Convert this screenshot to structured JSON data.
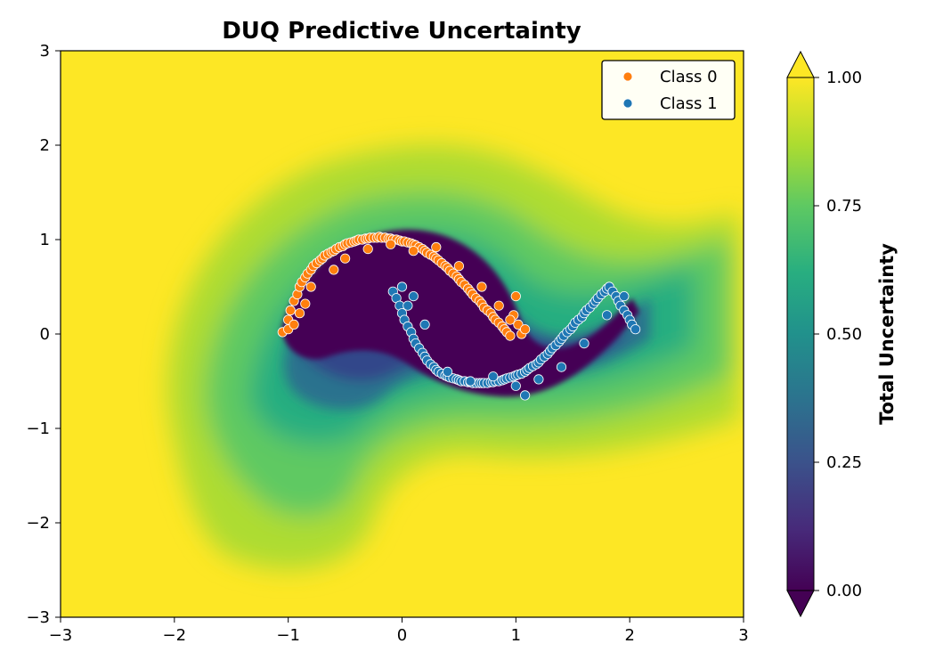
{
  "chart_data": {
    "type": "scatter",
    "title": "DUQ Predictive Uncertainty",
    "xlim": [
      -3,
      3
    ],
    "ylim": [
      -3,
      3
    ],
    "xticks": [
      -3,
      -2,
      -1,
      0,
      1,
      2,
      3
    ],
    "yticks": [
      -3,
      -2,
      -1,
      0,
      1,
      2,
      3
    ],
    "xtick_labels": [
      "−3",
      "−2",
      "−1",
      "0",
      "1",
      "2",
      "3"
    ],
    "ytick_labels": [
      "−3",
      "−2",
      "−1",
      "0",
      "1",
      "2",
      "3"
    ],
    "grid": false,
    "legend_position": "top-right",
    "background": {
      "type": "filled-contour",
      "quantity": "Total Uncertainty",
      "colormap": "viridis",
      "min_color": "#440154",
      "max_color": "#fde725"
    },
    "colorbar": {
      "label": "Total Uncertainty",
      "min": 0,
      "max": 1,
      "ticks": [
        0,
        0.25,
        0.5,
        0.75,
        1
      ],
      "tick_labels": [
        "0.00",
        "0.25",
        "0.50",
        "0.75",
        "1.00"
      ],
      "extend": "both"
    },
    "series": [
      {
        "name": "Class 0",
        "color": "#ff7f0e",
        "shape": "upper-moon",
        "x": [
          -1.05,
          -1.0,
          -0.98,
          -0.95,
          -0.92,
          -0.9,
          -0.88,
          -0.85,
          -0.83,
          -0.8,
          -0.78,
          -0.75,
          -0.72,
          -0.7,
          -0.68,
          -0.65,
          -0.62,
          -0.6,
          -0.58,
          -0.55,
          -0.52,
          -0.5,
          -0.48,
          -0.45,
          -0.42,
          -0.4,
          -0.38,
          -0.35,
          -0.32,
          -0.3,
          -0.28,
          -0.25,
          -0.22,
          -0.2,
          -0.18,
          -0.15,
          -0.12,
          -0.1,
          -0.08,
          -0.05,
          -0.02,
          0.0,
          0.02,
          0.05,
          0.08,
          0.1,
          0.12,
          0.15,
          0.18,
          0.2,
          0.22,
          0.25,
          0.28,
          0.3,
          0.32,
          0.35,
          0.38,
          0.4,
          0.42,
          0.45,
          0.48,
          0.5,
          0.52,
          0.55,
          0.58,
          0.6,
          0.62,
          0.65,
          0.68,
          0.7,
          0.72,
          0.75,
          0.78,
          0.8,
          0.82,
          0.85,
          0.88,
          0.9,
          0.92,
          0.95,
          0.98,
          1.0,
          1.02,
          1.05,
          -1.0,
          -0.95,
          -0.9,
          -0.85,
          -0.8,
          -0.6,
          -0.5,
          -0.3,
          -0.1,
          0.1,
          0.3,
          0.5,
          0.7,
          0.85,
          0.95,
          1.08
        ],
        "y": [
          0.02,
          0.15,
          0.25,
          0.35,
          0.42,
          0.5,
          0.55,
          0.6,
          0.64,
          0.68,
          0.72,
          0.75,
          0.78,
          0.8,
          0.83,
          0.85,
          0.87,
          0.88,
          0.9,
          0.92,
          0.93,
          0.95,
          0.96,
          0.97,
          0.98,
          0.99,
          1.0,
          1.0,
          1.01,
          1.01,
          1.02,
          1.02,
          1.02,
          1.03,
          1.02,
          1.02,
          1.01,
          1.01,
          1.0,
          1.0,
          0.99,
          0.98,
          0.98,
          0.97,
          0.96,
          0.95,
          0.94,
          0.92,
          0.9,
          0.88,
          0.86,
          0.84,
          0.82,
          0.8,
          0.78,
          0.75,
          0.72,
          0.7,
          0.67,
          0.64,
          0.61,
          0.58,
          0.55,
          0.52,
          0.48,
          0.45,
          0.42,
          0.38,
          0.35,
          0.32,
          0.28,
          0.25,
          0.22,
          0.18,
          0.15,
          0.12,
          0.08,
          0.05,
          0.02,
          -0.02,
          0.2,
          0.4,
          0.1,
          0.0,
          0.05,
          0.1,
          0.22,
          0.32,
          0.5,
          0.68,
          0.8,
          0.9,
          0.95,
          0.88,
          0.92,
          0.72,
          0.5,
          0.3,
          0.15,
          0.05
        ],
        "point_count": 100
      },
      {
        "name": "Class 1",
        "color": "#1f77b4",
        "shape": "lower-moon",
        "x": [
          -0.08,
          -0.05,
          -0.02,
          0.0,
          0.02,
          0.05,
          0.08,
          0.1,
          0.12,
          0.15,
          0.18,
          0.2,
          0.22,
          0.25,
          0.28,
          0.3,
          0.32,
          0.35,
          0.38,
          0.4,
          0.42,
          0.45,
          0.48,
          0.5,
          0.52,
          0.55,
          0.58,
          0.6,
          0.62,
          0.65,
          0.68,
          0.7,
          0.72,
          0.75,
          0.78,
          0.8,
          0.82,
          0.85,
          0.88,
          0.9,
          0.92,
          0.95,
          0.98,
          1.0,
          1.02,
          1.05,
          1.08,
          1.1,
          1.12,
          1.15,
          1.18,
          1.2,
          1.22,
          1.25,
          1.28,
          1.3,
          1.32,
          1.35,
          1.38,
          1.4,
          1.42,
          1.45,
          1.48,
          1.5,
          1.52,
          1.55,
          1.58,
          1.6,
          1.62,
          1.65,
          1.68,
          1.7,
          1.72,
          1.75,
          1.78,
          1.8,
          1.82,
          1.85,
          1.88,
          1.9,
          1.92,
          1.95,
          1.98,
          2.0,
          2.02,
          2.05,
          0.0,
          0.1,
          0.2,
          0.4,
          0.6,
          0.8,
          1.0,
          1.2,
          1.4,
          1.6,
          1.8,
          1.95,
          0.05,
          1.08
        ],
        "y": [
          0.45,
          0.38,
          0.3,
          0.22,
          0.15,
          0.08,
          0.02,
          -0.05,
          -0.1,
          -0.15,
          -0.2,
          -0.24,
          -0.28,
          -0.32,
          -0.35,
          -0.38,
          -0.4,
          -0.42,
          -0.44,
          -0.45,
          -0.46,
          -0.47,
          -0.48,
          -0.49,
          -0.5,
          -0.5,
          -0.51,
          -0.51,
          -0.52,
          -0.52,
          -0.52,
          -0.52,
          -0.52,
          -0.52,
          -0.51,
          -0.51,
          -0.5,
          -0.5,
          -0.49,
          -0.48,
          -0.47,
          -0.46,
          -0.45,
          -0.44,
          -0.43,
          -0.42,
          -0.4,
          -0.38,
          -0.36,
          -0.34,
          -0.32,
          -0.3,
          -0.27,
          -0.24,
          -0.21,
          -0.18,
          -0.15,
          -0.12,
          -0.08,
          -0.05,
          -0.02,
          0.02,
          0.05,
          0.08,
          0.12,
          0.15,
          0.18,
          0.22,
          0.25,
          0.28,
          0.32,
          0.35,
          0.38,
          0.42,
          0.45,
          0.48,
          0.5,
          0.45,
          0.4,
          0.35,
          0.3,
          0.25,
          0.2,
          0.15,
          0.1,
          0.05,
          0.5,
          0.4,
          0.1,
          -0.4,
          -0.5,
          -0.45,
          -0.55,
          -0.48,
          -0.35,
          -0.1,
          0.2,
          0.4,
          0.3,
          -0.65
        ],
        "point_count": 100
      }
    ]
  }
}
